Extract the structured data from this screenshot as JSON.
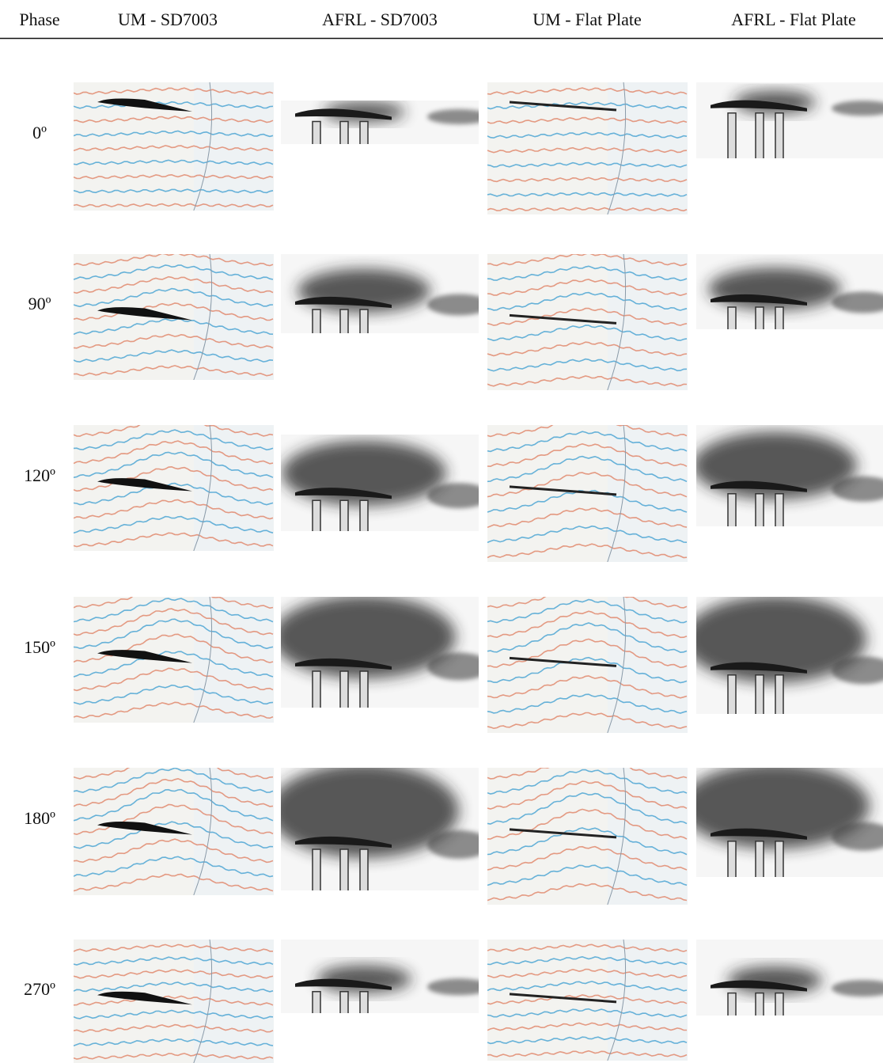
{
  "table": {
    "header": [
      "Phase",
      "UM - SD7003",
      "AFRL - SD7003",
      "UM - Flat Plate",
      "AFRL - Flat Plate"
    ],
    "rows": [
      "0º",
      "90º",
      "120º",
      "150º",
      "180º",
      "270º"
    ]
  }
}
